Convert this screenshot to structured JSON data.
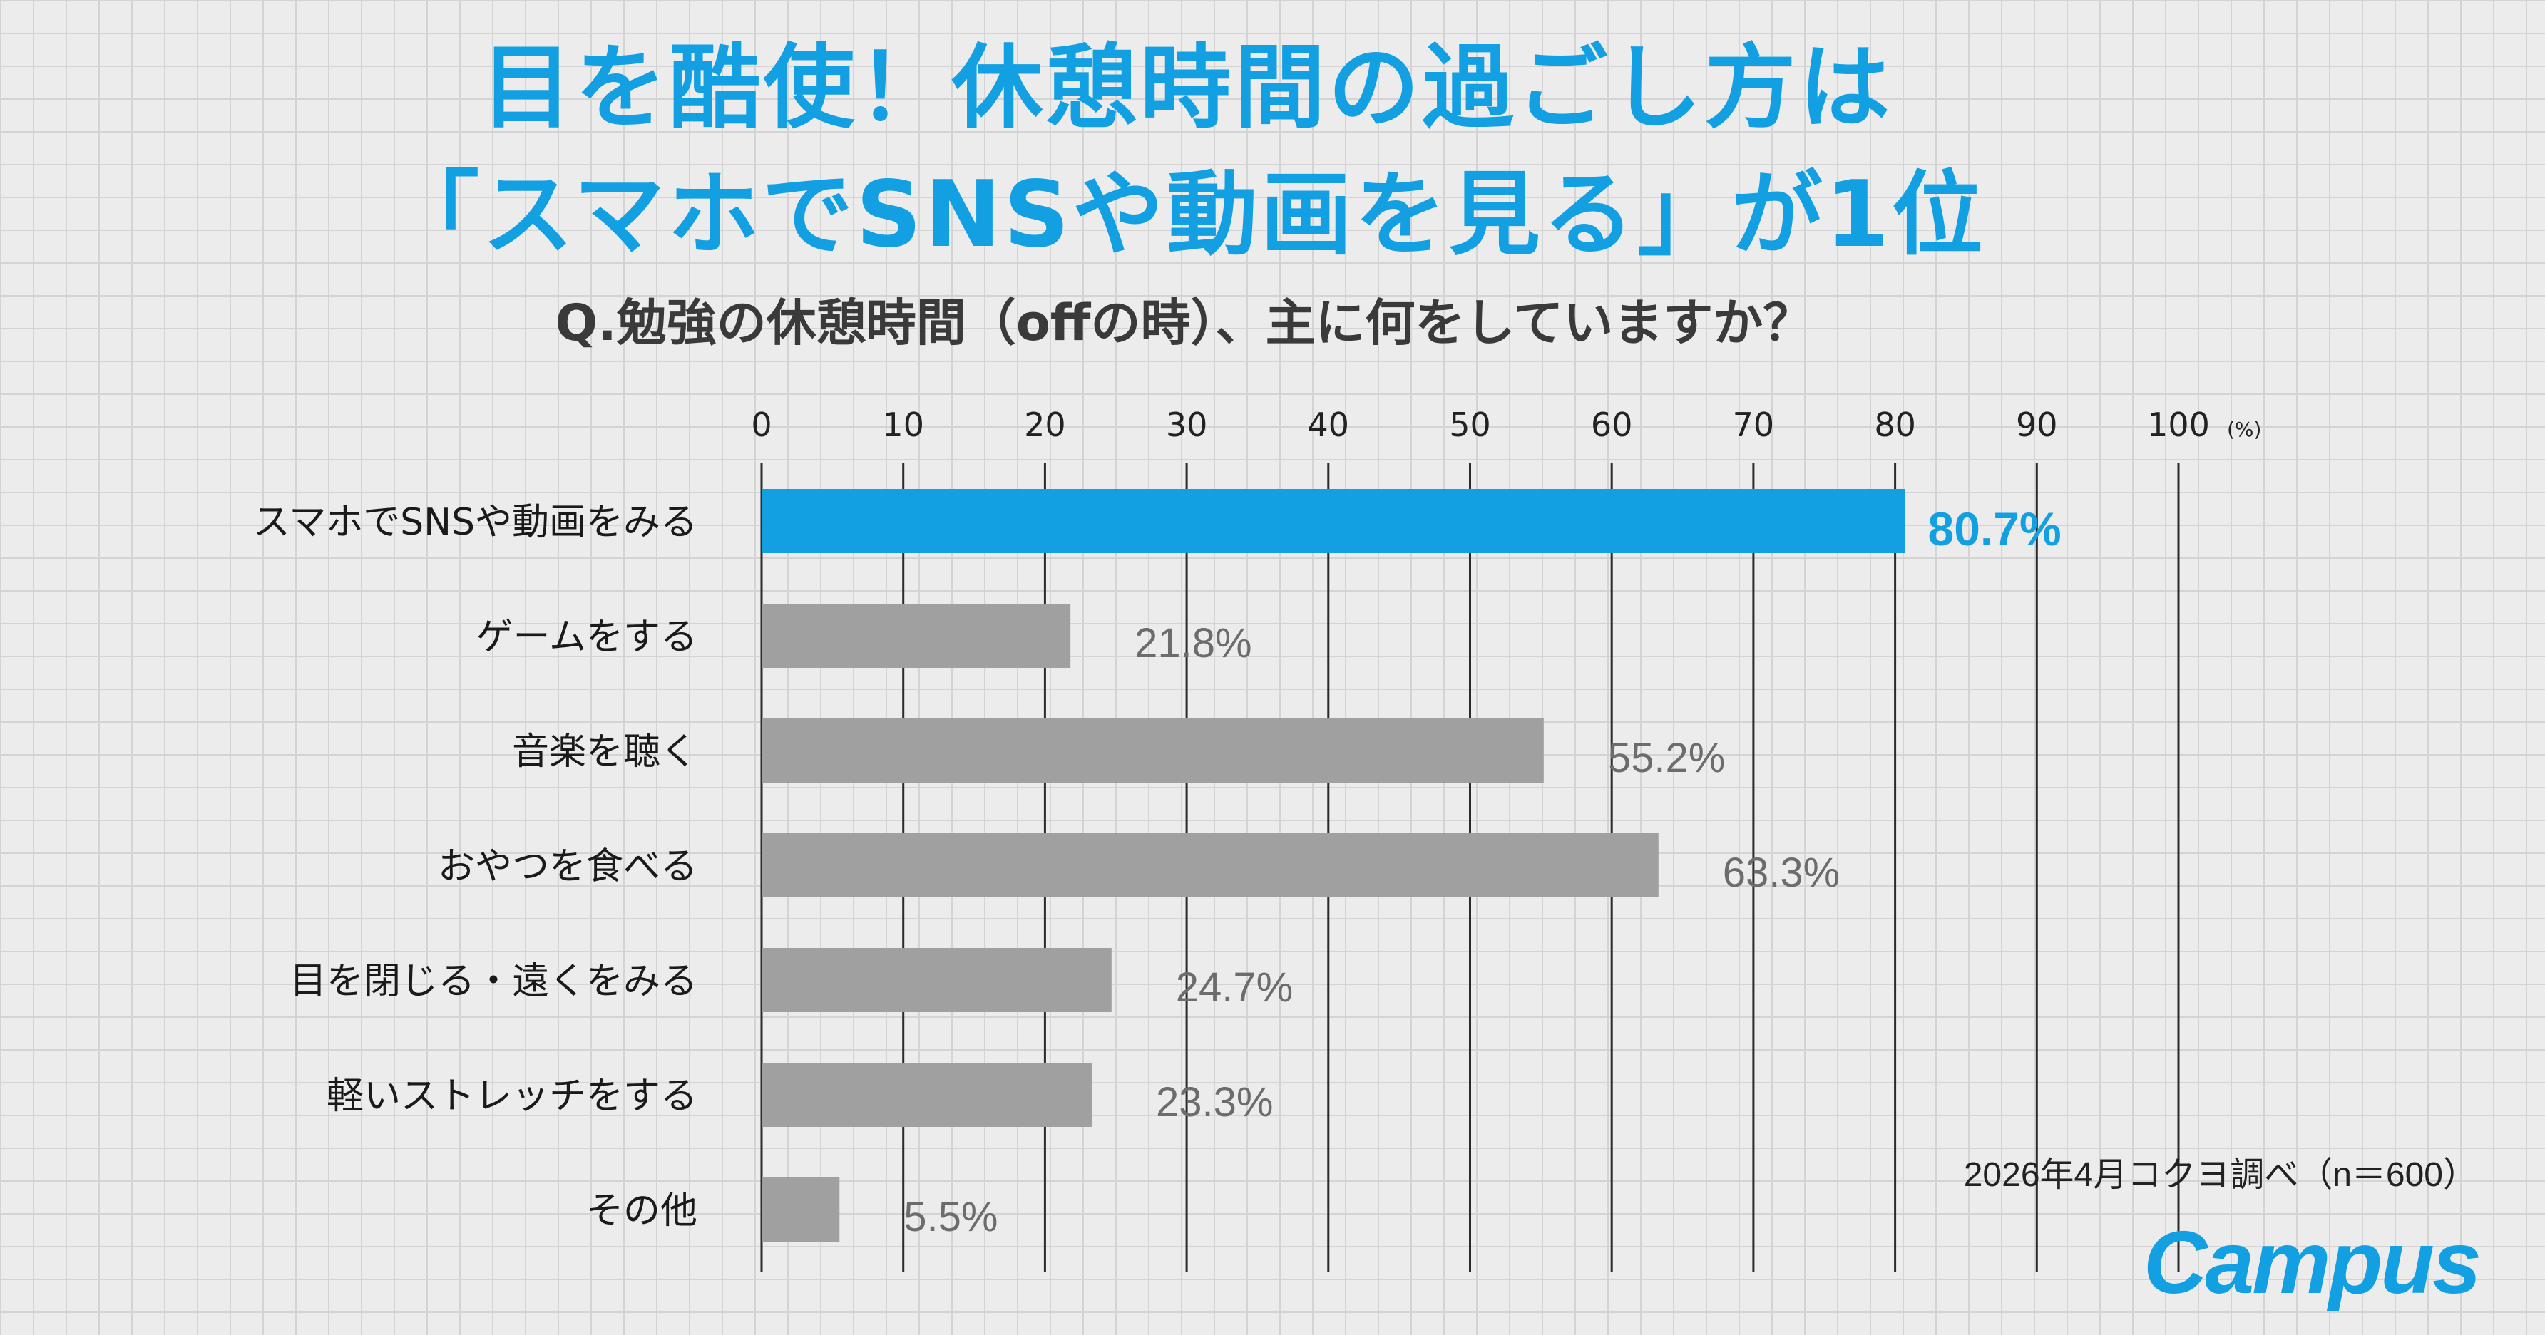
{
  "title": {
    "line1": "目を酷使！休憩時間の過ごし方は",
    "line2": "「スマホでSNSや動画を見る」が1位"
  },
  "question": "Q.勉強の休憩時間（offの時）、主に何をしていますか？",
  "note": "2026年4月コクヨ調べ（n＝600）",
  "logo": "Campus",
  "colors": {
    "highlight": "#13a0e3",
    "bar": "#9fa09f",
    "label_highlight": "#13a0e3",
    "label": "#6c6c6c"
  },
  "chart_data": {
    "type": "bar",
    "orientation": "horizontal",
    "categories": [
      "スマホでSNSや動画をみる",
      "ゲームをする",
      "音楽を聴く",
      "おやつを食べる",
      "目を閉じる・遠くをみる",
      "軽いストレッチをする",
      "その他"
    ],
    "values": [
      80.7,
      21.8,
      55.2,
      63.3,
      24.7,
      23.3,
      5.5
    ],
    "value_labels": [
      "80.7%",
      "21.8%",
      "55.2%",
      "63.3%",
      "24.7%",
      "23.3%",
      "5.5%"
    ],
    "highlight_index": 0,
    "xlim": [
      0,
      100
    ],
    "xticks": [
      "0",
      "10",
      "20",
      "30",
      "40",
      "50",
      "60",
      "70",
      "80",
      "90",
      "100"
    ],
    "unit": "(%)",
    "grid": true
  }
}
